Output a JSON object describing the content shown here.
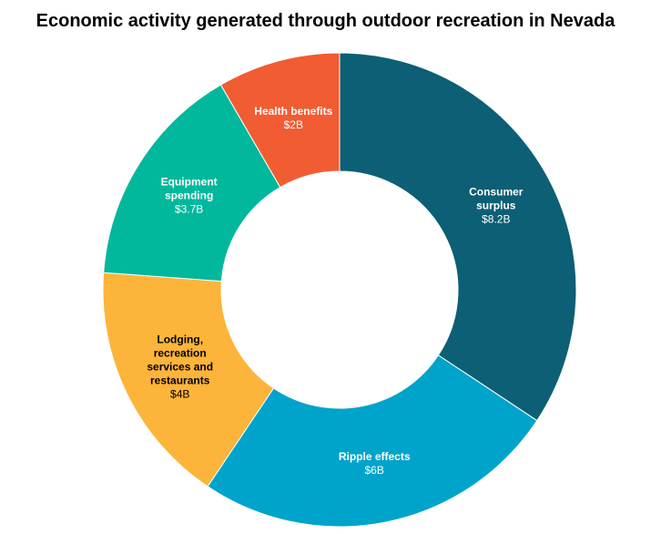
{
  "chart_data": {
    "type": "donut",
    "title": "Economic activity generated through outdoor recreation in Nevada",
    "categories": [
      "Consumer surplus",
      "Ripple effects",
      "Lodging, recreation services and restaurants",
      "Equipment spending",
      "Health benefits"
    ],
    "values": [
      8.2,
      6,
      4,
      3.7,
      2
    ],
    "value_labels": [
      "$8.2B",
      "$6B",
      "$4B",
      "$3.7B",
      "$2B"
    ],
    "colors": [
      "#0c5f74",
      "#00a4cb",
      "#fdb43a",
      "#01b89c",
      "#f15c33"
    ]
  }
}
